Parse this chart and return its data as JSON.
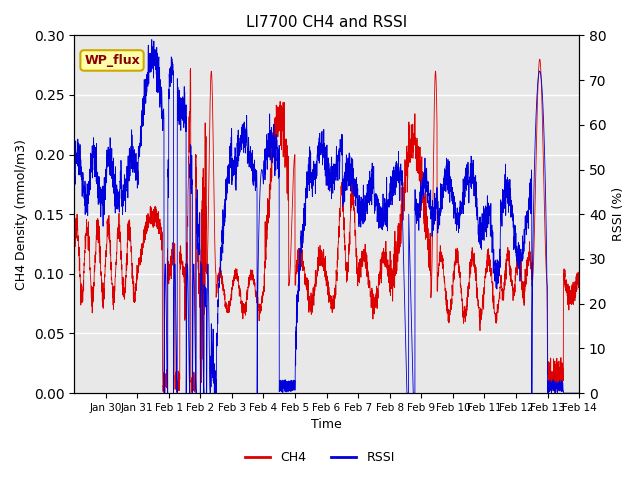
{
  "title": "LI7700 CH4 and RSSI",
  "xlabel": "Time",
  "ylabel_left": "CH4 Density (mmol/m3)",
  "ylabel_right": "RSSI (%)",
  "annotation": "WP_flux",
  "ch4_ylim": [
    0.0,
    0.3
  ],
  "rssi_ylim": [
    0,
    80
  ],
  "ch4_yticks": [
    0.0,
    0.05,
    0.1,
    0.15,
    0.2,
    0.25,
    0.3
  ],
  "rssi_yticks": [
    0,
    10,
    20,
    30,
    40,
    50,
    60,
    70,
    80
  ],
  "background_color": "#e8e8e8",
  "ch4_color": "#dd0000",
  "rssi_color": "#0000dd",
  "grid_color": "#ffffff",
  "n_points": 3360,
  "start_day": 29.0,
  "end_day": 45.0,
  "xtick_positions": [
    30,
    31,
    32,
    33,
    34,
    35,
    36,
    37,
    38,
    39,
    40,
    41,
    42,
    43,
    44,
    45
  ],
  "xtick_labels": [
    "Jan 30",
    "Jan 31",
    "Feb 1",
    "Feb 2",
    "Feb 3",
    "Feb 4",
    "Feb 5",
    "Feb 6",
    "Feb 7",
    "Feb 8",
    "Feb 9",
    "Feb 10",
    "Feb 11",
    "Feb 12",
    "Feb 13",
    "Feb 14"
  ]
}
